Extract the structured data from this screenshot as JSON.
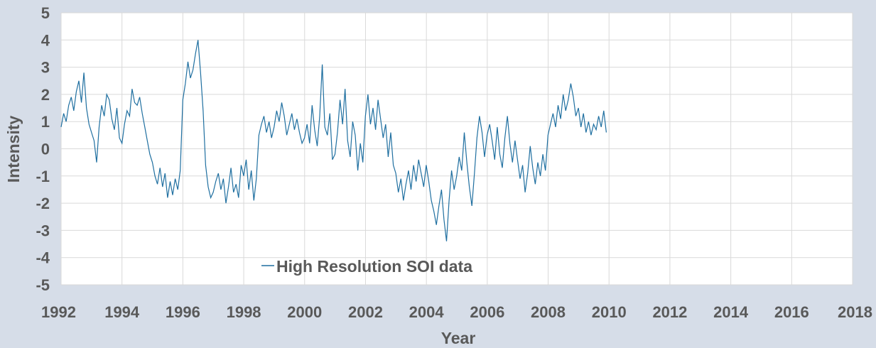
{
  "chart_data": {
    "type": "line",
    "title": "",
    "xlabel": "Year",
    "ylabel": "Intensity",
    "xlim": [
      1992,
      2018
    ],
    "ylim": [
      -5,
      5
    ],
    "grid": true,
    "x_ticks": [
      1992,
      1994,
      1996,
      1998,
      2000,
      2002,
      2004,
      2006,
      2008,
      2010,
      2012,
      2014,
      2016,
      2018
    ],
    "x_tick_labels": [
      "1992",
      "1994",
      "1996",
      "1998",
      "2000",
      "2002",
      "2004",
      "2006",
      "2008",
      "2010",
      "2012",
      "2014",
      "2016",
      "2018"
    ],
    "y_ticks": [
      5,
      4,
      3,
      2,
      1,
      0,
      -1,
      -2,
      -3,
      -4,
      -5
    ],
    "y_tick_labels": [
      "5",
      "4",
      "3",
      "2",
      "1",
      "0",
      "-1",
      "-2",
      "-3",
      "-4",
      "-5"
    ],
    "legend_position": "bottom-left",
    "colors": {
      "series": "#1f6fa0",
      "grid": "#d9d9d9",
      "plot_bg": "#ffffff",
      "page_bg": "#d6dde8"
    },
    "series": [
      {
        "name": "High Resolution SOI data",
        "x_start": 1992.0,
        "x_step": 0.0833,
        "values": [
          0.8,
          1.3,
          1.0,
          1.6,
          1.9,
          1.4,
          2.1,
          2.5,
          1.7,
          2.8,
          1.5,
          0.9,
          0.6,
          0.3,
          -0.5,
          0.8,
          1.6,
          1.2,
          2.0,
          1.8,
          1.1,
          0.7,
          1.5,
          0.4,
          0.2,
          0.9,
          1.4,
          1.2,
          2.2,
          1.7,
          1.6,
          1.9,
          1.3,
          0.8,
          0.3,
          -0.2,
          -0.5,
          -1.0,
          -1.3,
          -0.7,
          -1.4,
          -0.9,
          -1.8,
          -1.2,
          -1.7,
          -1.1,
          -1.5,
          -0.8,
          1.8,
          2.4,
          3.2,
          2.6,
          2.9,
          3.5,
          4.0,
          2.8,
          1.4,
          -0.6,
          -1.4,
          -1.8,
          -1.6,
          -1.2,
          -0.9,
          -1.5,
          -1.1,
          -2.0,
          -1.4,
          -0.7,
          -1.6,
          -1.3,
          -1.8,
          -0.6,
          -1.0,
          -0.4,
          -1.5,
          -0.8,
          -1.9,
          -1.1,
          0.5,
          0.9,
          1.2,
          0.6,
          1.0,
          0.4,
          0.8,
          1.4,
          1.0,
          1.7,
          1.2,
          0.5,
          0.9,
          1.3,
          0.7,
          1.1,
          0.6,
          0.2,
          0.4,
          0.9,
          0.2,
          1.6,
          0.7,
          0.1,
          1.2,
          3.1,
          0.8,
          0.5,
          1.3,
          -0.4,
          -0.2,
          0.6,
          1.8,
          0.9,
          2.2,
          0.3,
          -0.3,
          1.0,
          0.5,
          -0.8,
          0.2,
          -0.5,
          1.2,
          2.0,
          0.9,
          1.5,
          0.7,
          1.8,
          1.1,
          0.4,
          0.9,
          -0.3,
          0.6,
          -0.6,
          -0.9,
          -1.6,
          -1.1,
          -1.9,
          -1.3,
          -0.8,
          -1.5,
          -0.6,
          -1.2,
          -0.4,
          -0.9,
          -1.4,
          -0.6,
          -1.2,
          -1.9,
          -2.3,
          -2.8,
          -2.1,
          -1.5,
          -2.6,
          -3.4,
          -1.9,
          -0.8,
          -1.5,
          -1.0,
          -0.3,
          -0.8,
          0.6,
          -0.5,
          -1.4,
          -2.1,
          -0.9,
          0.4,
          1.2,
          0.6,
          -0.3,
          0.5,
          0.9,
          0.3,
          -0.4,
          0.8,
          -0.2,
          -0.7,
          0.4,
          1.2,
          0.2,
          -0.5,
          0.3,
          -0.4,
          -1.1,
          -0.6,
          -1.6,
          -0.9,
          0.1,
          -0.7,
          -1.3,
          -0.5,
          -1.0,
          -0.2,
          -0.8,
          0.5,
          0.9,
          1.3,
          0.8,
          1.6,
          1.1,
          2.0,
          1.4,
          1.8,
          2.4,
          1.9,
          1.2,
          1.5,
          0.8,
          1.3,
          0.6,
          1.0,
          0.5,
          0.9,
          0.7,
          1.2,
          0.8,
          1.4,
          0.6
        ]
      }
    ]
  }
}
